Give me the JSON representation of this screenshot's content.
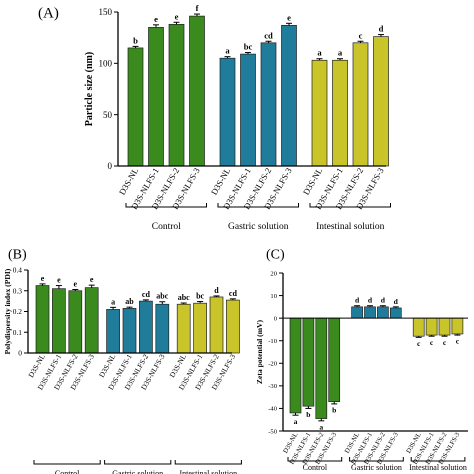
{
  "chart_data": [
    {
      "panel": "(A)",
      "type": "bar",
      "ylabel": "Particle size (nm)",
      "ylim": [
        0,
        150
      ],
      "yticks": [
        0,
        50,
        100,
        150
      ],
      "categories": [
        "D3S-NL",
        "D3S-NLFS-1",
        "D3S-NLFS-2",
        "D3S-NLFS-3",
        "D3S-NL",
        "D3S-NLFS-1",
        "D3S-NLFS-2",
        "D3S-NLFS-3",
        "D3S-NL",
        "D3S-NLFS-1",
        "D3S-NLFS-2",
        "D3S-NLFS-3"
      ],
      "values": [
        115,
        135,
        138,
        146,
        105,
        109,
        120,
        137,
        103,
        103,
        120,
        126
      ],
      "errors": [
        1.5,
        2.5,
        2,
        2,
        1.5,
        1.5,
        1.5,
        2,
        1.5,
        1.5,
        1.5,
        2
      ],
      "letters": [
        "b",
        "e",
        "e",
        "f",
        "a",
        "bc",
        "cd",
        "e",
        "a",
        "a",
        "c",
        "d"
      ],
      "group_colors": [
        "#3a8a1e",
        "#1f7d9b",
        "#c9c42a"
      ],
      "groups": [
        "Control",
        "Gastric solution",
        "Intestinal solution"
      ]
    },
    {
      "panel": "(B)",
      "type": "bar",
      "ylabel": "Polydispersity index (PDI)",
      "ylim": [
        0,
        0.4
      ],
      "yticks": [
        0.0,
        0.1,
        0.2,
        0.3,
        0.4
      ],
      "categories": [
        "D3S-NL",
        "D3S-NLFS-1",
        "D3S-NLFS-2",
        "D3S-NLFS-3",
        "D3S-NL",
        "D3S-NLFS-1",
        "D3S-NLFS-2",
        "D3S-NLFS-3",
        "D3S-NL",
        "D3S-NLFS-1",
        "D3S-NLFS-2",
        "D3S-NLFS-3"
      ],
      "values": [
        0.325,
        0.31,
        0.3,
        0.315,
        0.21,
        0.215,
        0.25,
        0.235,
        0.235,
        0.24,
        0.27,
        0.255
      ],
      "errors": [
        0.008,
        0.015,
        0.006,
        0.012,
        0.01,
        0.006,
        0.006,
        0.012,
        0.006,
        0.008,
        0.005,
        0.006
      ],
      "letters": [
        "e",
        "e",
        "e",
        "e",
        "a",
        "ab",
        "cd",
        "abc",
        "abc",
        "bc",
        "d",
        "cd"
      ],
      "group_colors": [
        "#3a8a1e",
        "#1f7d9b",
        "#c9c42a"
      ],
      "groups": [
        "Control",
        "Gastric solution",
        "Intestinal solution"
      ]
    },
    {
      "panel": "(C)",
      "type": "bar",
      "ylabel": "Zeta potential (mV)",
      "ylim": [
        -50,
        20
      ],
      "yticks": [
        20,
        10,
        0,
        -10,
        -20,
        -30,
        -40,
        -50
      ],
      "categories": [
        "D3S-NL",
        "D3S-NLFS-1",
        "D3S-NLFS-2",
        "D3S-NLFS-3",
        "D3S-NL",
        "D3S-NLFS-1",
        "D3S-NLFS-2",
        "D3S-NLFS-3",
        "D3S-NL",
        "D3S-NLFS-1",
        "D3S-NLFS-2",
        "D3S-NLFS-3"
      ],
      "values": [
        -42,
        -39,
        -44.5,
        -37,
        5,
        5,
        5,
        4.5,
        -8,
        -7.5,
        -7.5,
        -7
      ],
      "errors": [
        1,
        1,
        1,
        1,
        0.5,
        0.5,
        0.5,
        0.5,
        0.5,
        0.5,
        0.5,
        0.5
      ],
      "letters": [
        "a",
        "b",
        "a",
        "b",
        "d",
        "d",
        "d",
        "d",
        "c",
        "c",
        "c",
        "c"
      ],
      "group_colors": [
        "#3a8a1e",
        "#1f7d9b",
        "#c9c42a"
      ],
      "groups": [
        "Control",
        "Gastric solution",
        "Intestinal solution"
      ]
    }
  ]
}
